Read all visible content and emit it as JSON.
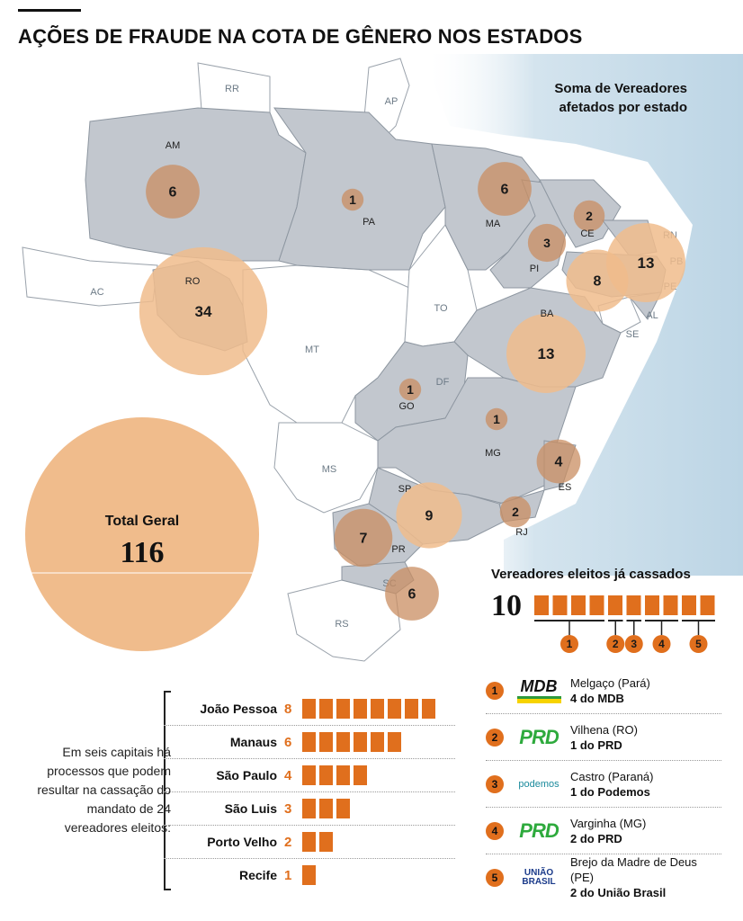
{
  "title": "AÇÕES DE FRAUDE NA COTA DE GÊNERO NOS ESTADOS",
  "legend_note": [
    "Soma de Vereadores",
    "afetados por estado"
  ],
  "colors": {
    "ocean": "#d4e4ee",
    "affected_state": "#c2c7ce",
    "unaffected_state": "#ffffff",
    "bubble": "#c98e62",
    "bubble_large": "#f0bc8c",
    "accent": "#e06f1d"
  },
  "map": {
    "states_outside_labels": [
      "RR",
      "AP",
      "AC",
      "MT",
      "MS",
      "RS",
      "TO",
      "DF",
      "SE",
      "AL",
      "RN",
      "PB",
      "PE",
      "SC"
    ],
    "states": [
      {
        "code": "AM",
        "value": 6
      },
      {
        "code": "PA",
        "value": 1
      },
      {
        "code": "MA",
        "value": 6
      },
      {
        "code": "CE",
        "value": 2
      },
      {
        "code": "PI",
        "value": 3
      },
      {
        "code": "PB",
        "value": 13
      },
      {
        "code": "PE",
        "value": 8
      },
      {
        "code": "RO",
        "value": 34
      },
      {
        "code": "BA",
        "value": 13
      },
      {
        "code": "GO",
        "value": 1
      },
      {
        "code": "MG",
        "value": 1
      },
      {
        "code": "ES",
        "value": 4
      },
      {
        "code": "SP",
        "value": 9
      },
      {
        "code": "RJ",
        "value": 2
      },
      {
        "code": "PR",
        "value": 7
      },
      {
        "code": "SC",
        "value": 6
      }
    ]
  },
  "total": {
    "label": "Total Geral",
    "value": 116
  },
  "cassados": {
    "title": "Vereadores eleitos já cassados",
    "count": "10",
    "groups": [
      {
        "id": "1",
        "size": 4
      },
      {
        "id": "2",
        "size": 1
      },
      {
        "id": "3",
        "size": 1
      },
      {
        "id": "4",
        "size": 2
      },
      {
        "id": "5",
        "size": 2
      }
    ]
  },
  "capitals_note": "Em seis capitais há processos que podem resultar na cassação do mandato de 24 vereadores eleitos:",
  "capitals": [
    {
      "name": "João Pessoa",
      "count": 8
    },
    {
      "name": "Manaus",
      "count": 6
    },
    {
      "name": "São Paulo",
      "count": 4
    },
    {
      "name": "São Luis",
      "count": 3
    },
    {
      "name": "Porto Velho",
      "count": 2
    },
    {
      "name": "Recife",
      "count": 1
    }
  ],
  "cities": [
    {
      "num": "1",
      "logo": "MDB",
      "place": "Melgaço (Pará)",
      "party": "4 do MDB"
    },
    {
      "num": "2",
      "logo": "PRD",
      "place": "Vilhena (RO)",
      "party": "1 do PRD"
    },
    {
      "num": "3",
      "logo": "podemos",
      "place": "Castro (Paraná)",
      "party": "1 do Podemos"
    },
    {
      "num": "4",
      "logo": "PRD",
      "place": "Varginha (MG)",
      "party": "2 do PRD"
    },
    {
      "num": "5",
      "logo": "UNIÃO BRASIL",
      "place": "Brejo da Madre de Deus (PE)",
      "party": "2 do União Brasil"
    }
  ]
}
